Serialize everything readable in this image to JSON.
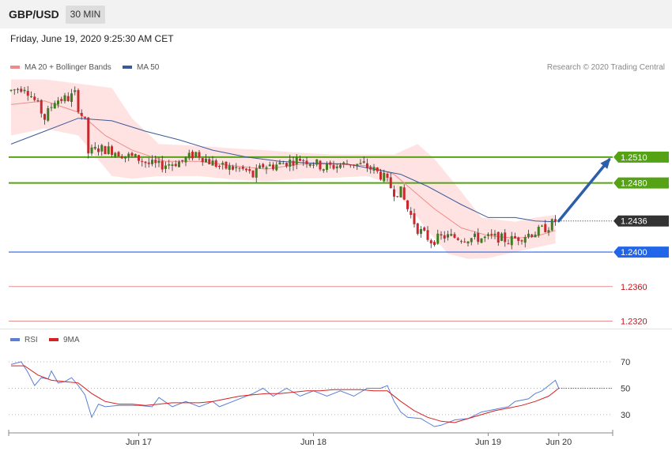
{
  "header": {
    "symbol": "GBP/USD",
    "timeframe": "30 MIN"
  },
  "date_text": "Friday, June 19, 2020 9:25:30 AM CET",
  "legend": {
    "ma20_label": "MA 20 + Bollinger Bands",
    "ma50_label": "MA 50",
    "copyright": "Research © 2020 Trading Central",
    "rsi_label": "RSI",
    "rsi_ma_label": "9MA"
  },
  "colors": {
    "resistance": "#55a314",
    "support": "#2166e8",
    "weak_support": "#e27474",
    "current": "#333333",
    "ma20": "#f08a8a",
    "ma50": "#3a5a9a",
    "bull_candle": "#3f7d1e",
    "bear_candle": "#c9292e",
    "arrow": "#2c5eaa",
    "bollinger": "#ffe0e0"
  },
  "chart_data": [
    {
      "type": "candlestick",
      "title": "GBP/USD",
      "timeframe": "30 MIN",
      "x_ticks": [
        "Jun 17",
        "Jun 18",
        "Jun 19",
        "Jun 20"
      ],
      "ylim": [
        1.2315,
        1.2605
      ],
      "levels": [
        {
          "value": 1.251,
          "label": "1.2510",
          "kind": "resistance"
        },
        {
          "value": 1.248,
          "label": "1.2480",
          "kind": "resistance"
        },
        {
          "value": 1.2436,
          "label": "1.2436",
          "kind": "current"
        },
        {
          "value": 1.24,
          "label": "1.2400",
          "kind": "support"
        },
        {
          "value": 1.236,
          "label": "1.2360",
          "kind": "weak_support"
        },
        {
          "value": 1.232,
          "label": "1.2320",
          "kind": "weak_support"
        }
      ],
      "price_path": [
        [
          0,
          1.2587
        ],
        [
          4,
          1.2592
        ],
        [
          8,
          1.257
        ],
        [
          10,
          1.2555
        ],
        [
          13,
          1.2576
        ],
        [
          17,
          1.2578
        ],
        [
          19,
          1.2583
        ],
        [
          20,
          1.2568
        ],
        [
          22,
          1.255
        ],
        [
          23,
          1.2515
        ],
        [
          26,
          1.252
        ],
        [
          30,
          1.2518
        ],
        [
          34,
          1.2512
        ],
        [
          38,
          1.2508
        ],
        [
          41,
          1.2502
        ],
        [
          44,
          1.25
        ],
        [
          48,
          1.2503
        ],
        [
          51,
          1.2505
        ],
        [
          55,
          1.2515
        ],
        [
          59,
          1.2505
        ],
        [
          63,
          1.2498
        ],
        [
          67,
          1.2497
        ],
        [
          70,
          1.2494
        ],
        [
          72,
          1.2488
        ],
        [
          75,
          1.25
        ],
        [
          78,
          1.25
        ],
        [
          82,
          1.2504
        ],
        [
          86,
          1.2508
        ],
        [
          90,
          1.2504
        ],
        [
          93,
          1.2498
        ],
        [
          97,
          1.25
        ],
        [
          101,
          1.2503
        ],
        [
          105,
          1.25
        ],
        [
          108,
          1.2495
        ],
        [
          111,
          1.2486
        ],
        [
          114,
          1.247
        ],
        [
          116,
          1.247
        ],
        [
          118,
          1.245
        ],
        [
          121,
          1.2427
        ],
        [
          125,
          1.2413
        ],
        [
          129,
          1.2418
        ],
        [
          133,
          1.2417
        ],
        [
          137,
          1.2416
        ],
        [
          141,
          1.2416
        ],
        [
          145,
          1.2417
        ],
        [
          148,
          1.2413
        ],
        [
          151,
          1.2417
        ],
        [
          154,
          1.2421
        ],
        [
          157,
          1.2424
        ],
        [
          160,
          1.243
        ],
        [
          162,
          1.2436
        ]
      ],
      "ma20_path": [
        [
          0,
          1.2571
        ],
        [
          10,
          1.2575
        ],
        [
          20,
          1.2562
        ],
        [
          28,
          1.2535
        ],
        [
          36,
          1.2518
        ],
        [
          46,
          1.2505
        ],
        [
          56,
          1.2505
        ],
        [
          66,
          1.25
        ],
        [
          76,
          1.2496
        ],
        [
          86,
          1.2502
        ],
        [
          96,
          1.2502
        ],
        [
          106,
          1.25
        ],
        [
          114,
          1.249
        ],
        [
          120,
          1.247
        ],
        [
          126,
          1.245
        ],
        [
          134,
          1.2428
        ],
        [
          142,
          1.2419
        ],
        [
          150,
          1.2416
        ],
        [
          156,
          1.2418
        ],
        [
          162,
          1.2425
        ]
      ],
      "bollinger_upper": [
        [
          0,
          1.26
        ],
        [
          10,
          1.26
        ],
        [
          20,
          1.2595
        ],
        [
          30,
          1.259
        ],
        [
          36,
          1.2555
        ],
        [
          44,
          1.2525
        ],
        [
          56,
          1.2523
        ],
        [
          66,
          1.252
        ],
        [
          76,
          1.2518
        ],
        [
          86,
          1.2515
        ],
        [
          96,
          1.2513
        ],
        [
          106,
          1.2513
        ],
        [
          114,
          1.2513
        ],
        [
          118,
          1.252
        ],
        [
          121,
          1.2525
        ],
        [
          126,
          1.2508
        ],
        [
          134,
          1.247
        ],
        [
          140,
          1.244
        ],
        [
          150,
          1.2435
        ],
        [
          156,
          1.244
        ],
        [
          162,
          1.2443
        ]
      ],
      "bollinger_lower": [
        [
          0,
          1.2535
        ],
        [
          10,
          1.2543
        ],
        [
          20,
          1.2535
        ],
        [
          30,
          1.2488
        ],
        [
          36,
          1.2485
        ],
        [
          44,
          1.2488
        ],
        [
          56,
          1.2488
        ],
        [
          66,
          1.2484
        ],
        [
          76,
          1.2482
        ],
        [
          86,
          1.2485
        ],
        [
          96,
          1.2486
        ],
        [
          106,
          1.2488
        ],
        [
          112,
          1.248
        ],
        [
          118,
          1.2455
        ],
        [
          124,
          1.2425
        ],
        [
          130,
          1.2398
        ],
        [
          136,
          1.2392
        ],
        [
          142,
          1.2393
        ],
        [
          150,
          1.24
        ],
        [
          156,
          1.2405
        ],
        [
          162,
          1.241
        ]
      ],
      "ma50_path": [
        [
          0,
          1.2525
        ],
        [
          10,
          1.254
        ],
        [
          20,
          1.2555
        ],
        [
          30,
          1.2552
        ],
        [
          40,
          1.254
        ],
        [
          50,
          1.253
        ],
        [
          60,
          1.2518
        ],
        [
          70,
          1.251
        ],
        [
          80,
          1.2505
        ],
        [
          90,
          1.2503
        ],
        [
          100,
          1.2502
        ],
        [
          108,
          1.2496
        ],
        [
          116,
          1.249
        ],
        [
          124,
          1.2476
        ],
        [
          134,
          1.2455
        ],
        [
          142,
          1.244
        ],
        [
          150,
          1.244
        ],
        [
          156,
          1.2436
        ],
        [
          162,
          1.2435
        ]
      ],
      "forecast_arrow": {
        "from": [
          163,
          1.2436
        ],
        "to": [
          178,
          1.2507
        ]
      }
    },
    {
      "type": "line",
      "title": "RSI",
      "x_ticks": [
        "Jun 17",
        "Jun 18",
        "Jun 19",
        "Jun 20"
      ],
      "ylim": [
        18,
        76
      ],
      "y_ticks": [
        70,
        50,
        30
      ],
      "series": [
        {
          "name": "RSI",
          "values": [
            [
              0,
              68
            ],
            [
              3,
              70
            ],
            [
              5,
              62
            ],
            [
              7,
              52
            ],
            [
              9,
              58
            ],
            [
              11,
              57
            ],
            [
              12,
              63
            ],
            [
              14,
              54
            ],
            [
              16,
              55
            ],
            [
              18,
              58
            ],
            [
              20,
              52
            ],
            [
              22,
              45
            ],
            [
              24,
              28
            ],
            [
              26,
              38
            ],
            [
              28,
              36
            ],
            [
              32,
              37
            ],
            [
              38,
              37
            ],
            [
              42,
              36
            ],
            [
              44,
              43
            ],
            [
              48,
              36
            ],
            [
              52,
              40
            ],
            [
              56,
              36
            ],
            [
              60,
              40
            ],
            [
              62,
              36
            ],
            [
              66,
              40
            ],
            [
              70,
              44
            ],
            [
              72,
              46
            ],
            [
              75,
              50
            ],
            [
              78,
              44
            ],
            [
              82,
              50
            ],
            [
              86,
              44
            ],
            [
              90,
              48
            ],
            [
              94,
              44
            ],
            [
              98,
              48
            ],
            [
              102,
              44
            ],
            [
              106,
              50
            ],
            [
              110,
              50
            ],
            [
              112,
              52
            ],
            [
              114,
              40
            ],
            [
              116,
              32
            ],
            [
              118,
              28
            ],
            [
              122,
              27
            ],
            [
              124,
              24
            ],
            [
              126,
              21
            ],
            [
              128,
              22
            ],
            [
              132,
              26
            ],
            [
              136,
              27
            ],
            [
              140,
              32
            ],
            [
              144,
              34
            ],
            [
              148,
              36
            ],
            [
              150,
              40
            ],
            [
              154,
              42
            ],
            [
              156,
              46
            ],
            [
              158,
              48
            ],
            [
              160,
              52
            ],
            [
              162,
              56
            ],
            [
              163,
              50
            ]
          ]
        },
        {
          "name": "9MA",
          "values": [
            [
              0,
              67
            ],
            [
              4,
              67
            ],
            [
              8,
              60
            ],
            [
              12,
              56
            ],
            [
              16,
              55
            ],
            [
              20,
              54
            ],
            [
              24,
              46
            ],
            [
              28,
              40
            ],
            [
              32,
              38
            ],
            [
              36,
              38
            ],
            [
              40,
              37
            ],
            [
              44,
              38
            ],
            [
              48,
              39
            ],
            [
              52,
              39
            ],
            [
              56,
              39
            ],
            [
              60,
              40
            ],
            [
              64,
              42
            ],
            [
              68,
              44
            ],
            [
              72,
              45
            ],
            [
              76,
              46
            ],
            [
              80,
              46
            ],
            [
              84,
              47
            ],
            [
              88,
              48
            ],
            [
              92,
              48
            ],
            [
              96,
              49
            ],
            [
              100,
              49
            ],
            [
              104,
              49
            ],
            [
              108,
              48
            ],
            [
              112,
              48
            ],
            [
              116,
              40
            ],
            [
              120,
              33
            ],
            [
              124,
              28
            ],
            [
              128,
              25
            ],
            [
              132,
              24
            ],
            [
              136,
              27
            ],
            [
              140,
              30
            ],
            [
              144,
              33
            ],
            [
              148,
              35
            ],
            [
              152,
              37
            ],
            [
              156,
              40
            ],
            [
              160,
              44
            ],
            [
              163,
              50
            ]
          ]
        }
      ]
    }
  ]
}
